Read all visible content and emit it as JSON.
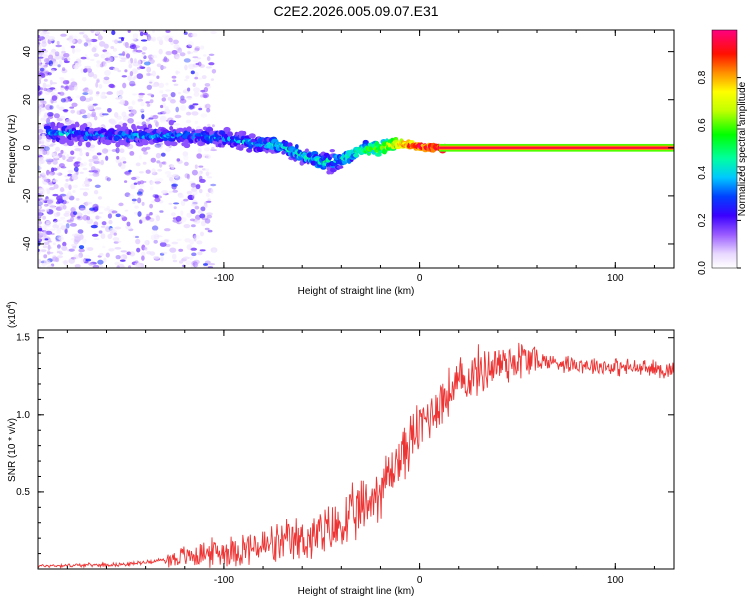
{
  "title": "C2E2.2026.005.09.07.E31",
  "chart_data": [
    {
      "type": "heatmap",
      "title": "C2E2.2026.005.09.07.E31",
      "xlabel": "Height of straight line (km)",
      "ylabel": "Frequency (Hz)",
      "xlim": [
        -195,
        130
      ],
      "ylim": [
        -50,
        49
      ],
      "xticks": [
        "-100",
        "0",
        "100"
      ],
      "xtick_values": [
        -100,
        0,
        100
      ],
      "yticks": [
        "-40",
        "-20",
        "0",
        "20",
        "40"
      ],
      "ytick_values": [
        -40,
        -20,
        0,
        20,
        40
      ],
      "ridge": [
        {
          "x": -180,
          "f": 6,
          "amp": 0.35
        },
        {
          "x": -160,
          "f": 5,
          "amp": 0.3
        },
        {
          "x": -140,
          "f": 5,
          "amp": 0.35
        },
        {
          "x": -120,
          "f": 5,
          "amp": 0.3
        },
        {
          "x": -100,
          "f": 4,
          "amp": 0.35
        },
        {
          "x": -85,
          "f": 2,
          "amp": 0.35
        },
        {
          "x": -70,
          "f": 1,
          "amp": 0.4
        },
        {
          "x": -60,
          "f": -3,
          "amp": 0.4
        },
        {
          "x": -50,
          "f": -6,
          "amp": 0.45
        },
        {
          "x": -40,
          "f": -5,
          "amp": 0.4
        },
        {
          "x": -30,
          "f": -1,
          "amp": 0.5
        },
        {
          "x": -20,
          "f": 0,
          "amp": 0.6
        },
        {
          "x": -10,
          "f": 2,
          "amp": 0.8
        },
        {
          "x": 0,
          "f": 0.5,
          "amp": 0.9
        },
        {
          "x": 10,
          "f": 0,
          "amp": 0.95
        },
        {
          "x": 130,
          "f": 0,
          "amp": 0.95
        }
      ],
      "colorbar": {
        "label": "Normalized spectral amplitude",
        "ticks": [
          "0.0",
          "0.2",
          "0.4",
          "0.6",
          "0.8"
        ],
        "tick_values": [
          0,
          0.2,
          0.4,
          0.6,
          0.8
        ],
        "range": [
          0,
          1
        ]
      }
    },
    {
      "type": "line",
      "xlabel": "Height of straight line (km)",
      "ylabel": "SNR (10 * v/v)",
      "yscale_label": "(x10",
      "yscale_exp": "4",
      "yscale_close": ")",
      "xlim": [
        -195,
        130
      ],
      "ylim": [
        0,
        1.55
      ],
      "xticks": [
        "-100",
        "0",
        "100"
      ],
      "xtick_values": [
        -100,
        0,
        100
      ],
      "yticks": [
        "0.5",
        "1.0",
        "1.5"
      ],
      "ytick_values": [
        0.5,
        1.0,
        1.5
      ],
      "series": [
        {
          "name": "SNR",
          "color": "#ee3333",
          "envelope_x": [
            -195,
            -150,
            -130,
            -110,
            -90,
            -70,
            -50,
            -40,
            -30,
            -20,
            -10,
            0,
            10,
            20,
            30,
            40,
            50,
            60,
            80,
            100,
            130
          ],
          "envelope_y": [
            0.02,
            0.03,
            0.06,
            0.1,
            0.13,
            0.16,
            0.22,
            0.28,
            0.38,
            0.52,
            0.72,
            0.92,
            1.08,
            1.2,
            1.28,
            1.33,
            1.36,
            1.35,
            1.33,
            1.31,
            1.29
          ]
        }
      ]
    }
  ]
}
